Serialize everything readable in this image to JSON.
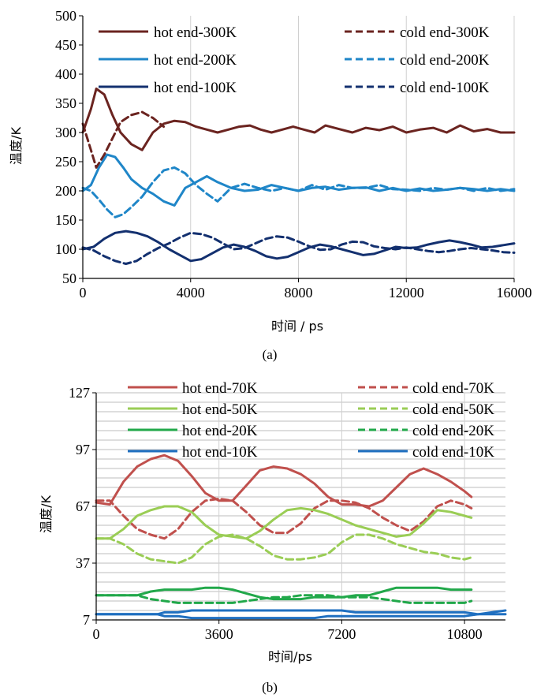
{
  "chart_data": [
    {
      "type": "line",
      "caption": "(a)",
      "xlabel": "时间 / ps",
      "ylabel": "温度/K",
      "xlim": [
        0,
        16000
      ],
      "ylim": [
        50,
        500
      ],
      "xticks": [
        "0",
        "4000",
        "8000",
        "12000",
        "16000"
      ],
      "yticks": [
        "50",
        "100",
        "150",
        "200",
        "250",
        "300",
        "350",
        "400",
        "450",
        "500"
      ],
      "grid": "vertical",
      "legend_position": "top",
      "series": [
        {
          "name": "hot end-300K",
          "color": "#6b2420",
          "dash": "solid",
          "x": [
            0,
            300,
            500,
            800,
            1100,
            1400,
            1800,
            2200,
            2600,
            3000,
            3400,
            3800,
            4200,
            4600,
            5000,
            5400,
            5800,
            6200,
            6600,
            7000,
            7400,
            7800,
            8200,
            8600,
            9000,
            9500,
            10000,
            10500,
            11000,
            11500,
            12000,
            12500,
            13000,
            13500,
            14000,
            14500,
            15000,
            15500,
            16000
          ],
          "y": [
            300,
            340,
            375,
            365,
            330,
            300,
            280,
            270,
            300,
            315,
            320,
            318,
            310,
            305,
            300,
            305,
            310,
            312,
            305,
            300,
            305,
            310,
            305,
            300,
            312,
            306,
            300,
            308,
            304,
            310,
            300,
            305,
            308,
            300,
            312,
            302,
            306,
            300,
            300
          ]
        },
        {
          "name": "cold end-300K",
          "color": "#6b2420",
          "dash": "dashed",
          "x": [
            0,
            300,
            500,
            800,
            1100,
            1400,
            1800,
            2200,
            2600,
            3000
          ],
          "y": [
            315,
            270,
            240,
            262,
            290,
            318,
            330,
            335,
            325,
            310
          ]
        },
        {
          "name": "hot end-200K",
          "color": "#1f86c8",
          "dash": "solid",
          "x": [
            0,
            300,
            600,
            900,
            1200,
            1500,
            1800,
            2200,
            2600,
            3000,
            3400,
            3800,
            4200,
            4600,
            5000,
            5500,
            6000,
            6500,
            7000,
            7500,
            8000,
            8500,
            9000,
            9500,
            10000,
            10500,
            11000,
            11500,
            12000,
            12500,
            13000,
            13500,
            14000,
            14500,
            15000,
            15500,
            16000
          ],
          "y": [
            200,
            210,
            240,
            262,
            258,
            240,
            220,
            205,
            195,
            182,
            175,
            205,
            215,
            225,
            215,
            205,
            200,
            202,
            210,
            205,
            200,
            205,
            207,
            202,
            205,
            206,
            200,
            205,
            200,
            204,
            200,
            202,
            205,
            203,
            200,
            203,
            200
          ]
        },
        {
          "name": "cold end-200K",
          "color": "#1f86c8",
          "dash": "dashed",
          "x": [
            0,
            300,
            600,
            900,
            1200,
            1500,
            1800,
            2200,
            2600,
            3000,
            3400,
            3800,
            4200,
            4600,
            5000,
            5500,
            6000,
            6500,
            7000,
            7500,
            8000,
            8500,
            9000,
            9500,
            10000,
            10500,
            11000,
            11500,
            12000,
            12500,
            13000,
            13500,
            14000,
            14500,
            15000,
            15500,
            16000
          ],
          "y": [
            205,
            200,
            185,
            168,
            155,
            160,
            172,
            190,
            215,
            235,
            240,
            230,
            210,
            195,
            182,
            205,
            212,
            205,
            200,
            205,
            200,
            210,
            202,
            210,
            205,
            205,
            210,
            203,
            202,
            200,
            205,
            202,
            205,
            200,
            205,
            200,
            203
          ]
        },
        {
          "name": "hot end-100K",
          "color": "#13306f",
          "dash": "solid",
          "x": [
            0,
            400,
            800,
            1200,
            1600,
            2000,
            2400,
            2800,
            3200,
            3600,
            4000,
            4400,
            4800,
            5200,
            5600,
            6000,
            6400,
            6800,
            7200,
            7600,
            8000,
            8400,
            8800,
            9200,
            9600,
            10000,
            10400,
            10800,
            11200,
            11600,
            12000,
            12400,
            12800,
            13200,
            13600,
            14000,
            14400,
            14800,
            15200,
            15600,
            16000
          ],
          "y": [
            100,
            104,
            118,
            128,
            131,
            128,
            122,
            112,
            100,
            90,
            80,
            83,
            93,
            103,
            108,
            104,
            97,
            88,
            84,
            87,
            95,
            103,
            108,
            105,
            100,
            95,
            90,
            92,
            98,
            104,
            102,
            103,
            108,
            112,
            115,
            112,
            108,
            103,
            104,
            107,
            110
          ]
        },
        {
          "name": "cold end-100K",
          "color": "#13306f",
          "dash": "dashed",
          "x": [
            0,
            400,
            800,
            1200,
            1600,
            2000,
            2400,
            2800,
            3200,
            3600,
            4000,
            4400,
            4800,
            5200,
            5600,
            6000,
            6400,
            6800,
            7200,
            7600,
            8000,
            8400,
            8800,
            9200,
            9600,
            10000,
            10400,
            10800,
            11200,
            11600,
            12000,
            12400,
            12800,
            13200,
            13600,
            14000,
            14400,
            14800,
            15200,
            15600,
            16000
          ],
          "y": [
            103,
            98,
            88,
            80,
            75,
            80,
            92,
            102,
            110,
            120,
            128,
            126,
            120,
            110,
            100,
            102,
            110,
            118,
            122,
            120,
            113,
            105,
            99,
            100,
            108,
            113,
            112,
            105,
            102,
            100,
            103,
            100,
            97,
            95,
            97,
            100,
            102,
            100,
            98,
            95,
            94
          ]
        }
      ]
    },
    {
      "type": "line",
      "caption": "(b)",
      "xlabel": "时间/ps",
      "ylabel": "温度/K",
      "xlim": [
        0,
        12000
      ],
      "ylim": [
        7,
        127
      ],
      "xticks": [
        "0",
        "3600",
        "7200",
        "10800"
      ],
      "yticks": [
        "7",
        "37",
        "67",
        "97",
        "127"
      ],
      "grid": "horizontal+vertical",
      "legend_position": "top",
      "series": [
        {
          "name": "hot end-70K",
          "color": "#c0504d",
          "dash": "solid",
          "x": [
            0,
            400,
            800,
            1200,
            1600,
            2000,
            2400,
            2800,
            3200,
            3600,
            4000,
            4400,
            4800,
            5200,
            5600,
            6000,
            6400,
            6800,
            7200,
            7600,
            8000,
            8400,
            8800,
            9200,
            9600,
            10000,
            10400,
            10800,
            11000
          ],
          "y": [
            69,
            68,
            80,
            88,
            92,
            94,
            91,
            83,
            74,
            70,
            70,
            78,
            86,
            88,
            87,
            84,
            79,
            72,
            68,
            68,
            67,
            70,
            77,
            84,
            87,
            84,
            80,
            75,
            72
          ]
        },
        {
          "name": "cold end-70K",
          "color": "#c0504d",
          "dash": "dashed",
          "x": [
            0,
            400,
            800,
            1200,
            1600,
            2000,
            2400,
            2800,
            3200,
            3600,
            4000,
            4400,
            4800,
            5200,
            5600,
            6000,
            6400,
            6800,
            7200,
            7600,
            8000,
            8400,
            8800,
            9200,
            9600,
            10000,
            10400,
            10800,
            11000
          ],
          "y": [
            70,
            70,
            62,
            55,
            52,
            50,
            55,
            64,
            70,
            71,
            70,
            64,
            57,
            53,
            53,
            58,
            66,
            70,
            70,
            69,
            66,
            61,
            57,
            54,
            59,
            67,
            70,
            68,
            66
          ]
        },
        {
          "name": "hot end-50K",
          "color": "#9acd55",
          "dash": "solid",
          "x": [
            0,
            400,
            800,
            1200,
            1600,
            2000,
            2400,
            2800,
            3200,
            3600,
            4000,
            4400,
            4800,
            5200,
            5600,
            6000,
            6400,
            6800,
            7200,
            7600,
            8000,
            8400,
            8800,
            9200,
            9600,
            10000,
            10400,
            10800,
            11000
          ],
          "y": [
            50,
            50,
            55,
            62,
            65,
            67,
            67,
            64,
            57,
            52,
            51,
            50,
            54,
            60,
            65,
            66,
            65,
            63,
            60,
            57,
            55,
            53,
            51,
            52,
            58,
            65,
            64,
            62,
            61
          ]
        },
        {
          "name": "cold end-50K",
          "color": "#9acd55",
          "dash": "dashed",
          "x": [
            0,
            400,
            800,
            1200,
            1600,
            2000,
            2400,
            2800,
            3200,
            3600,
            4000,
            4400,
            4800,
            5200,
            5600,
            6000,
            6400,
            6800,
            7200,
            7600,
            8000,
            8400,
            8800,
            9200,
            9600,
            10000,
            10400,
            10800,
            11000
          ],
          "y": [
            50,
            50,
            47,
            42,
            39,
            38,
            37,
            40,
            47,
            51,
            52,
            50,
            46,
            41,
            39,
            39,
            40,
            42,
            48,
            52,
            52,
            50,
            47,
            45,
            43,
            42,
            40,
            39,
            40
          ]
        },
        {
          "name": "hot end-20K",
          "color": "#21a84a",
          "dash": "solid",
          "x": [
            0,
            800,
            1200,
            1600,
            2000,
            2400,
            2800,
            3200,
            3600,
            4000,
            4400,
            4800,
            5200,
            5600,
            6000,
            6400,
            6800,
            7200,
            7600,
            8000,
            8400,
            8800,
            9200,
            9600,
            10000,
            10400,
            10800,
            11000
          ],
          "y": [
            20,
            20,
            20,
            22,
            23,
            23,
            23,
            24,
            24,
            23,
            21,
            19,
            18,
            18,
            18,
            19,
            19,
            19,
            20,
            20,
            22,
            24,
            24,
            24,
            24,
            23,
            23,
            23
          ]
        },
        {
          "name": "cold end-20K",
          "color": "#21a84a",
          "dash": "dashed",
          "x": [
            0,
            800,
            1200,
            1600,
            2000,
            2400,
            2800,
            3200,
            3600,
            4000,
            4400,
            4800,
            5200,
            5600,
            6000,
            6400,
            6800,
            7200,
            7600,
            8000,
            8400,
            8800,
            9200,
            9600,
            10000,
            10400,
            10800,
            11000
          ],
          "y": [
            20,
            20,
            20,
            18,
            17,
            16,
            16,
            16,
            16,
            16,
            17,
            18,
            19,
            19,
            20,
            20,
            20,
            19,
            19,
            19,
            18,
            17,
            16,
            16,
            16,
            16,
            16,
            17
          ]
        },
        {
          "name": "hot end-10K",
          "color": "#1f6fc0",
          "dash": "solid",
          "x": [
            0,
            1200,
            1800,
            2000,
            2400,
            2800,
            3200,
            3600,
            4000,
            4400,
            4800,
            5200,
            5600,
            6000,
            6400,
            6800,
            7200,
            7600,
            8000,
            8400,
            8800,
            9200,
            9600,
            10000,
            10400,
            10800,
            11200,
            11600,
            12000
          ],
          "y": [
            10,
            10,
            10,
            11,
            11,
            12,
            12,
            12,
            12,
            12,
            12,
            12,
            12,
            12,
            12,
            12,
            12,
            11,
            11,
            11,
            11,
            11,
            11,
            11,
            11,
            11,
            10,
            10,
            10
          ]
        },
        {
          "name": "cold end-10K",
          "color": "#1f6fc0",
          "dash": "solid",
          "x": [
            0,
            1200,
            1800,
            2000,
            2400,
            2800,
            3200,
            3600,
            4000,
            4400,
            4800,
            5200,
            5600,
            6000,
            6400,
            6800,
            7200,
            7600,
            8000,
            8400,
            8800,
            9200,
            9600,
            10000,
            10400,
            10800,
            11200,
            11600,
            12000
          ],
          "y": [
            10,
            10,
            10,
            9,
            9,
            8,
            8,
            8,
            8,
            8,
            8,
            8,
            8,
            8,
            8,
            9,
            9,
            9,
            9,
            9,
            9,
            9,
            9,
            9,
            9,
            9,
            10,
            11,
            12
          ]
        }
      ]
    }
  ]
}
